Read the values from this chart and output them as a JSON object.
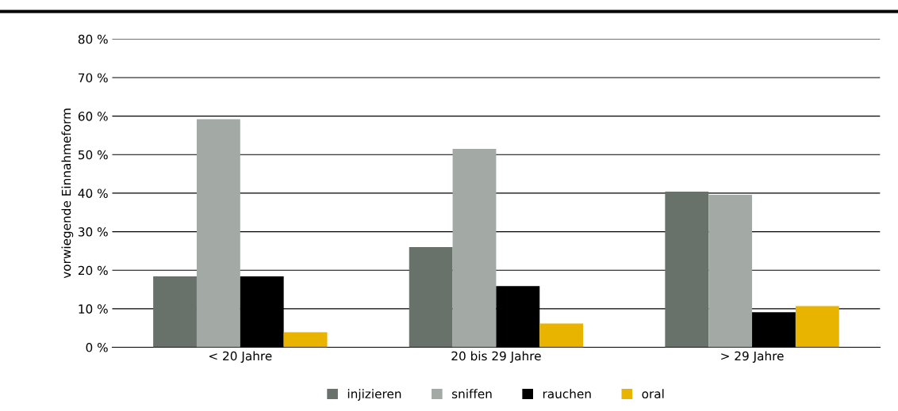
{
  "chart_data": {
    "type": "bar",
    "ylabel": "vorwiegende Einnahmeform",
    "categories": [
      "< 20 Jahre",
      "20 bis 29 Jahre",
      "> 29 Jahre"
    ],
    "series": [
      {
        "name": "injizieren",
        "color": "#68726a",
        "values": [
          18.4,
          26.0,
          40.4
        ]
      },
      {
        "name": "sniffen",
        "color": "#a3aaa5",
        "values": [
          59.2,
          51.5,
          39.6
        ]
      },
      {
        "name": "rauchen",
        "color": "#000000",
        "values": [
          18.4,
          15.9,
          9.1
        ]
      },
      {
        "name": "oral",
        "color": "#e8b400",
        "values": [
          3.9,
          6.2,
          10.7
        ]
      }
    ],
    "ylim": [
      0,
      80
    ],
    "yticks": [
      {
        "value": 0,
        "label": "0 %"
      },
      {
        "value": 10,
        "label": "10 %"
      },
      {
        "value": 20,
        "label": "20 %"
      },
      {
        "value": 30,
        "label": "30 %"
      },
      {
        "value": 40,
        "label": "40 %"
      },
      {
        "value": 50,
        "label": "50 %"
      },
      {
        "value": 60,
        "label": "60 %"
      },
      {
        "value": 70,
        "label": "70 %"
      },
      {
        "value": 80,
        "label": "80 %"
      }
    ],
    "grid": "y",
    "legend": "bottom"
  }
}
